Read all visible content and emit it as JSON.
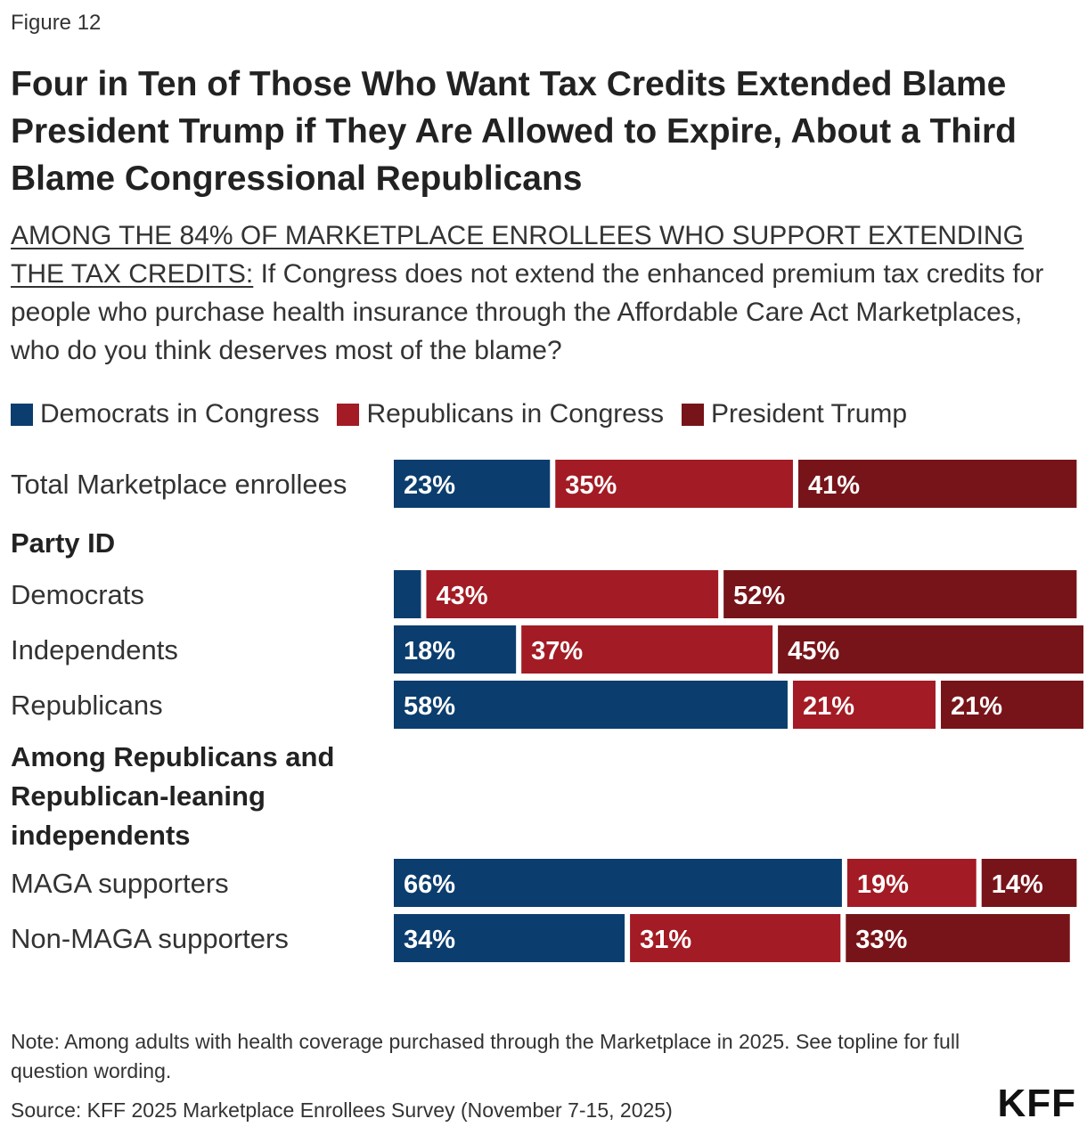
{
  "figure_label": "Figure 12",
  "title": "Four in Ten of Those Who Want Tax Credits Extended Blame President Trump if They Are Allowed to Expire, About a Third Blame Congressional Republicans",
  "subtitle": {
    "underlined": "AMONG THE 84% OF MARKETPLACE ENROLLEES WHO SUPPORT EXTENDING THE TAX CREDITS:",
    "question": " If Congress does not extend the enhanced premium tax credits for people who purchase health insurance through the Affordable Care Act Marketplaces, who do you think deserves most of the blame?"
  },
  "colors": {
    "democrats": "#0b3d6e",
    "republicans": "#a31b24",
    "trump": "#771419"
  },
  "chart_data": {
    "type": "bar",
    "orientation": "horizontal",
    "stacked": true,
    "series": [
      {
        "name": "Democrats in Congress",
        "color": "#0b3d6e"
      },
      {
        "name": "Republicans in Congress",
        "color": "#a31b24"
      },
      {
        "name": "President Trump",
        "color": "#771419"
      }
    ],
    "rows": [
      {
        "kind": "bar",
        "label": "Total Marketplace enrollees",
        "values": [
          23,
          35,
          41
        ],
        "labels": [
          "23%",
          "35%",
          "41%"
        ]
      },
      {
        "kind": "heading",
        "label": "Party ID"
      },
      {
        "kind": "bar",
        "label": "Democrats",
        "values": [
          4,
          43,
          52
        ],
        "labels": [
          "",
          "43%",
          "52%"
        ]
      },
      {
        "kind": "bar",
        "label": "Independents",
        "values": [
          18,
          37,
          45
        ],
        "labels": [
          "18%",
          "37%",
          "45%"
        ]
      },
      {
        "kind": "bar",
        "label": "Republicans",
        "values": [
          58,
          21,
          21
        ],
        "labels": [
          "58%",
          "21%",
          "21%"
        ]
      },
      {
        "kind": "heading",
        "label": "Among Republicans and Republican-leaning independents"
      },
      {
        "kind": "bar",
        "label": "MAGA supporters",
        "values": [
          66,
          19,
          14
        ],
        "labels": [
          "66%",
          "19%",
          "14%"
        ]
      },
      {
        "kind": "bar",
        "label": "Non-MAGA supporters",
        "values": [
          34,
          31,
          33
        ],
        "labels": [
          "34%",
          "31%",
          "33%"
        ]
      }
    ],
    "xlim": [
      0,
      100
    ],
    "legend_position": "top-left",
    "grid": false
  },
  "note": "Note: Among adults with health coverage purchased through the Marketplace in 2025. See topline for full question wording.",
  "source": "Source: KFF 2025 Marketplace Enrollees Survey (November 7-15, 2025)",
  "logo_text": "KFF"
}
